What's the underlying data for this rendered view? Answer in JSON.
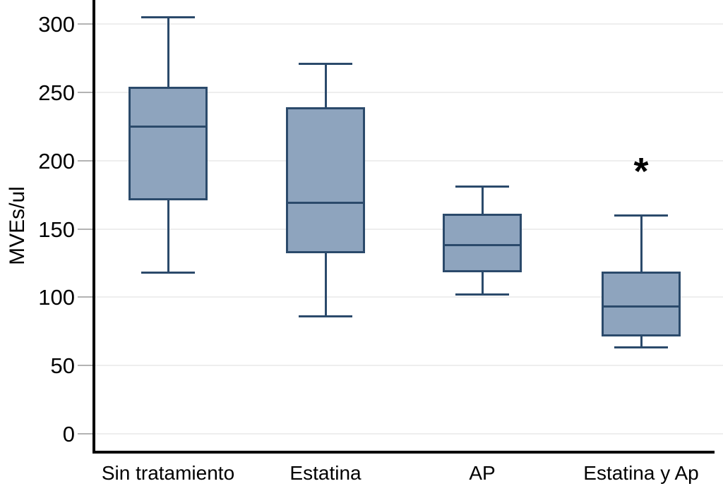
{
  "chart_data": {
    "type": "boxplot",
    "title": "",
    "xlabel": "",
    "ylabel": "MVEs/ul",
    "ylim": [
      0,
      317
    ],
    "yticks": [
      0,
      50,
      100,
      150,
      200,
      250,
      300
    ],
    "grid": true,
    "categories": [
      "Sin tratamiento",
      "Estatina",
      "AP",
      "Estatina y Ap"
    ],
    "boxes": [
      {
        "category": "Sin tratamiento",
        "whisker_low": 118,
        "q1": 171,
        "median": 225,
        "q3": 254,
        "whisker_high": 305
      },
      {
        "category": "Estatina",
        "whisker_low": 86,
        "q1": 132,
        "median": 169,
        "q3": 239,
        "whisker_high": 271
      },
      {
        "category": "AP",
        "whisker_low": 102,
        "q1": 118,
        "median": 138,
        "q3": 161,
        "whisker_high": 181
      },
      {
        "category": "Estatina y Ap",
        "whisker_low": 63,
        "q1": 71,
        "median": 93,
        "q3": 119,
        "whisker_high": 160
      }
    ],
    "annotations": [
      {
        "text": "*",
        "category": "Estatina y Ap",
        "value": 195
      }
    ],
    "colors": {
      "box_fill": "#8ea4be",
      "box_stroke": "#2b4a6b",
      "axis": "#000000",
      "tick": "#b3b3b3",
      "grid": "#eeeeee",
      "background": "#ffffff",
      "annotation": "#000000"
    }
  }
}
